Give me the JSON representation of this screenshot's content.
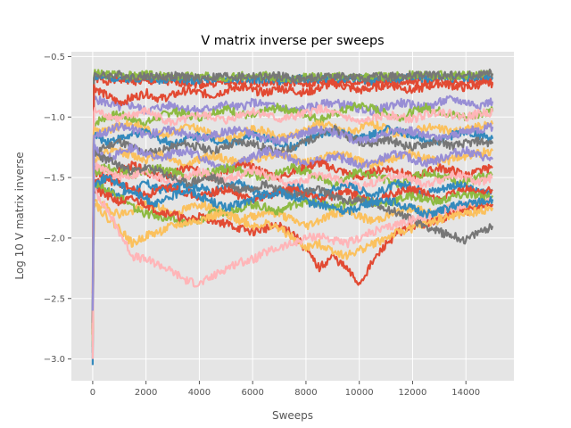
{
  "chart_data": {
    "type": "line",
    "title": "V matrix inverse per sweeps",
    "xlabel": "Sweeps",
    "ylabel": "Log 10 V matrix inverse",
    "xlim": [
      -800,
      15800
    ],
    "ylim": [
      -3.18,
      -0.46
    ],
    "xticks": [
      0,
      2000,
      4000,
      6000,
      8000,
      10000,
      12000,
      14000
    ],
    "yticks": [
      -3.0,
      -2.5,
      -2.0,
      -1.5,
      -1.0,
      -0.5
    ],
    "ytick_labels": [
      "−3.0",
      "−2.5",
      "−2.0",
      "−1.5",
      "−1.0",
      "−0.5"
    ],
    "grid": true,
    "style": "ggplot",
    "palette": [
      "#E24A33",
      "#348ABD",
      "#988ED5",
      "#777777",
      "#FBC15E",
      "#8EBA42",
      "#FFB5B8"
    ],
    "x_sample": [
      0,
      50,
      500,
      1000,
      1500,
      2000,
      2500,
      3000,
      3500,
      4000,
      4500,
      5000,
      5500,
      6000,
      6500,
      7000,
      7500,
      8000,
      8500,
      9000,
      9500,
      10000,
      10500,
      11000,
      11500,
      12000,
      12500,
      13000,
      13500,
      14000,
      14500,
      15000
    ],
    "series": [
      {
        "color": "#E24A33",
        "values": [
          -2.46,
          -0.68,
          -0.7,
          -0.69,
          -0.7,
          -0.71,
          -0.7,
          -0.72,
          -0.71,
          -0.73,
          -0.72,
          -0.71,
          -0.72,
          -0.71,
          -0.72,
          -0.71,
          -0.72,
          -0.73,
          -0.71,
          -0.72,
          -0.71,
          -0.72,
          -0.71,
          -0.72,
          -0.71,
          -0.7,
          -0.71,
          -0.7,
          -0.71,
          -0.7,
          -0.7,
          -0.71
        ]
      },
      {
        "color": "#348ABD",
        "values": [
          -3.05,
          -0.66,
          -0.68,
          -0.67,
          -0.68,
          -0.67,
          -0.69,
          -0.68,
          -0.7,
          -0.69,
          -0.68,
          -0.69,
          -0.68,
          -0.69,
          -0.68,
          -0.7,
          -0.69,
          -0.68,
          -0.69,
          -0.68,
          -0.69,
          -0.68,
          -0.7,
          -0.69,
          -0.68,
          -0.67,
          -0.68,
          -0.67,
          -0.68,
          -0.67,
          -0.66,
          -0.67
        ]
      },
      {
        "color": "#8EBA42",
        "values": [
          -2.9,
          -0.64,
          -0.65,
          -0.64,
          -0.66,
          -0.65,
          -0.66,
          -0.67,
          -0.66,
          -0.67,
          -0.66,
          -0.67,
          -0.66,
          -0.67,
          -0.66,
          -0.67,
          -0.68,
          -0.67,
          -0.66,
          -0.67,
          -0.66,
          -0.67,
          -0.66,
          -0.67,
          -0.66,
          -0.65,
          -0.66,
          -0.65,
          -0.66,
          -0.65,
          -0.65,
          -0.64
        ]
      },
      {
        "color": "#777777",
        "values": [
          -2.95,
          -0.65,
          -0.66,
          -0.65,
          -0.67,
          -0.66,
          -0.67,
          -0.66,
          -0.67,
          -0.68,
          -0.67,
          -0.66,
          -0.67,
          -0.66,
          -0.67,
          -0.66,
          -0.68,
          -0.69,
          -0.67,
          -0.66,
          -0.67,
          -0.68,
          -0.67,
          -0.66,
          -0.67,
          -0.66,
          -0.65,
          -0.66,
          -0.65,
          -0.66,
          -0.65,
          -0.64
        ]
      },
      {
        "color": "#988ED5",
        "values": [
          -2.8,
          -0.85,
          -0.88,
          -0.92,
          -0.9,
          -0.95,
          -0.92,
          -0.9,
          -0.93,
          -0.95,
          -0.92,
          -0.9,
          -0.92,
          -0.88,
          -0.9,
          -0.92,
          -0.95,
          -0.93,
          -0.9,
          -0.88,
          -0.9,
          -0.93,
          -0.95,
          -0.92,
          -0.88,
          -0.9,
          -0.92,
          -0.88,
          -0.85,
          -0.88,
          -0.9,
          -0.87
        ]
      },
      {
        "color": "#E24A33",
        "values": [
          -2.7,
          -0.75,
          -0.82,
          -0.88,
          -0.84,
          -0.8,
          -0.85,
          -0.82,
          -0.78,
          -0.8,
          -0.82,
          -0.78,
          -0.75,
          -0.78,
          -0.8,
          -0.76,
          -0.78,
          -0.8,
          -0.76,
          -0.72,
          -0.75,
          -0.78,
          -0.76,
          -0.73,
          -0.75,
          -0.78,
          -0.75,
          -0.72,
          -0.74,
          -0.76,
          -0.73,
          -0.72
        ]
      },
      {
        "color": "#8EBA42",
        "values": [
          -2.7,
          -1.05,
          -1.0,
          -0.98,
          -1.02,
          -1.05,
          -1.0,
          -0.95,
          -0.98,
          -1.0,
          -0.96,
          -0.93,
          -0.97,
          -1.0,
          -0.95,
          -0.92,
          -0.95,
          -0.98,
          -1.02,
          -0.98,
          -0.94,
          -0.9,
          -0.93,
          -0.97,
          -1.0,
          -0.96,
          -0.92,
          -0.95,
          -0.98,
          -1.0,
          -0.97,
          -0.95
        ]
      },
      {
        "color": "#FFB5B8",
        "values": [
          -2.6,
          -0.95,
          -0.98,
          -1.02,
          -0.98,
          -0.95,
          -1.0,
          -1.05,
          -1.02,
          -0.98,
          -1.0,
          -1.03,
          -0.98,
          -0.95,
          -0.98,
          -1.02,
          -1.0,
          -0.97,
          -0.93,
          -0.97,
          -1.0,
          -1.05,
          -1.02,
          -0.98,
          -1.0,
          -1.02,
          -0.98,
          -0.95,
          -0.98,
          -1.0,
          -0.97,
          -0.96
        ]
      },
      {
        "color": "#FBC15E",
        "values": [
          -2.55,
          -1.1,
          -1.12,
          -1.08,
          -1.05,
          -1.1,
          -1.15,
          -1.12,
          -1.08,
          -1.1,
          -1.15,
          -1.2,
          -1.15,
          -1.1,
          -1.12,
          -1.18,
          -1.15,
          -1.1,
          -1.05,
          -1.08,
          -1.12,
          -1.1,
          -1.06,
          -1.1,
          -1.15,
          -1.12,
          -1.08,
          -1.1,
          -1.12,
          -1.1,
          -1.08,
          -1.06
        ]
      },
      {
        "color": "#348ABD",
        "values": [
          -2.6,
          -1.15,
          -1.2,
          -1.18,
          -1.15,
          -1.12,
          -1.18,
          -1.22,
          -1.18,
          -1.15,
          -1.18,
          -1.22,
          -1.2,
          -1.15,
          -1.18,
          -1.22,
          -1.25,
          -1.2,
          -1.15,
          -1.12,
          -1.15,
          -1.18,
          -1.15,
          -1.1,
          -1.12,
          -1.15,
          -1.18,
          -1.2,
          -1.15,
          -1.12,
          -1.15,
          -1.18
        ]
      },
      {
        "color": "#777777",
        "values": [
          -2.6,
          -1.3,
          -1.25,
          -1.2,
          -1.25,
          -1.3,
          -1.28,
          -1.25,
          -1.22,
          -1.25,
          -1.28,
          -1.25,
          -1.2,
          -1.22,
          -1.26,
          -1.3,
          -1.25,
          -1.2,
          -1.15,
          -1.1,
          -1.15,
          -1.2,
          -1.22,
          -1.18,
          -1.22,
          -1.25,
          -1.22,
          -1.2,
          -1.24,
          -1.22,
          -1.2,
          -1.22
        ]
      },
      {
        "color": "#FBC15E",
        "values": [
          -2.65,
          -1.35,
          -1.3,
          -1.28,
          -1.32,
          -1.35,
          -1.3,
          -1.35,
          -1.4,
          -1.35,
          -1.32,
          -1.35,
          -1.38,
          -1.35,
          -1.32,
          -1.3,
          -1.34,
          -1.38,
          -1.35,
          -1.3,
          -1.32,
          -1.36,
          -1.4,
          -1.36,
          -1.32,
          -1.3,
          -1.34,
          -1.38,
          -1.35,
          -1.32,
          -1.3,
          -1.28
        ]
      },
      {
        "color": "#988ED5",
        "values": [
          -2.65,
          -1.25,
          -1.35,
          -1.3,
          -1.25,
          -1.3,
          -1.35,
          -1.3,
          -1.28,
          -1.32,
          -1.38,
          -1.42,
          -1.38,
          -1.33,
          -1.28,
          -1.3,
          -1.35,
          -1.4,
          -1.36,
          -1.32,
          -1.35,
          -1.4,
          -1.38,
          -1.33,
          -1.3,
          -1.35,
          -1.38,
          -1.35,
          -1.3,
          -1.28,
          -1.32,
          -1.35
        ]
      },
      {
        "color": "#E24A33",
        "values": [
          -2.7,
          -1.45,
          -1.5,
          -1.45,
          -1.4,
          -1.45,
          -1.5,
          -1.48,
          -1.42,
          -1.45,
          -1.5,
          -1.45,
          -1.4,
          -1.42,
          -1.46,
          -1.5,
          -1.45,
          -1.42,
          -1.38,
          -1.42,
          -1.46,
          -1.5,
          -1.46,
          -1.42,
          -1.45,
          -1.5,
          -1.46,
          -1.42,
          -1.44,
          -1.48,
          -1.45,
          -1.42
        ]
      },
      {
        "color": "#8EBA42",
        "values": [
          -2.7,
          -1.45,
          -1.42,
          -1.45,
          -1.48,
          -1.45,
          -1.42,
          -1.45,
          -1.5,
          -1.48,
          -1.45,
          -1.42,
          -1.44,
          -1.48,
          -1.5,
          -1.46,
          -1.42,
          -1.45,
          -1.5,
          -1.55,
          -1.5,
          -1.45,
          -1.48,
          -1.52,
          -1.55,
          -1.5,
          -1.46,
          -1.48,
          -1.52,
          -1.55,
          -1.5,
          -1.48
        ]
      },
      {
        "color": "#FFB5B8",
        "values": [
          -2.7,
          -1.4,
          -1.45,
          -1.5,
          -1.48,
          -1.45,
          -1.5,
          -1.55,
          -1.5,
          -1.45,
          -1.48,
          -1.52,
          -1.48,
          -1.44,
          -1.48,
          -1.52,
          -1.56,
          -1.52,
          -1.48,
          -1.5,
          -1.55,
          -1.58,
          -1.54,
          -1.5,
          -1.48,
          -1.52,
          -1.56,
          -1.52,
          -1.48,
          -1.5,
          -1.54,
          -1.5
        ]
      },
      {
        "color": "#348ABD",
        "values": [
          -2.75,
          -1.55,
          -1.6,
          -1.65,
          -1.6,
          -1.55,
          -1.6,
          -1.58,
          -1.55,
          -1.58,
          -1.62,
          -1.58,
          -1.55,
          -1.6,
          -1.65,
          -1.62,
          -1.58,
          -1.6,
          -1.65,
          -1.6,
          -1.56,
          -1.6,
          -1.64,
          -1.6,
          -1.55,
          -1.58,
          -1.62,
          -1.6,
          -1.56,
          -1.58,
          -1.62,
          -1.6
        ]
      },
      {
        "color": "#E24A33",
        "values": [
          -2.75,
          -1.55,
          -1.52,
          -1.55,
          -1.6,
          -1.65,
          -1.6,
          -1.58,
          -1.62,
          -1.66,
          -1.62,
          -1.6,
          -1.65,
          -1.68,
          -1.65,
          -1.62,
          -1.6,
          -1.64,
          -1.68,
          -1.65,
          -1.62,
          -1.66,
          -1.7,
          -1.66,
          -1.62,
          -1.6,
          -1.64,
          -1.68,
          -1.64,
          -1.6,
          -1.62,
          -1.6
        ]
      },
      {
        "color": "#FBC15E",
        "values": [
          -2.8,
          -1.7,
          -1.75,
          -1.8,
          -1.78,
          -1.72,
          -1.75,
          -1.8,
          -1.76,
          -1.72,
          -1.75,
          -1.8,
          -1.85,
          -1.82,
          -1.78,
          -1.8,
          -1.85,
          -1.9,
          -1.85,
          -1.8,
          -1.78,
          -1.82,
          -1.86,
          -1.82,
          -1.78,
          -1.75,
          -1.78,
          -1.82,
          -1.78,
          -1.75,
          -1.72,
          -1.7
        ]
      },
      {
        "color": "#8EBA42",
        "values": [
          -2.8,
          -1.55,
          -1.6,
          -1.65,
          -1.75,
          -1.8,
          -1.82,
          -1.85,
          -1.88,
          -1.85,
          -1.8,
          -1.78,
          -1.75,
          -1.72,
          -1.75,
          -1.78,
          -1.72,
          -1.7,
          -1.72,
          -1.75,
          -1.72,
          -1.68,
          -1.7,
          -1.72,
          -1.68,
          -1.65,
          -1.68,
          -1.7,
          -1.66,
          -1.64,
          -1.66,
          -1.65
        ]
      },
      {
        "color": "#E24A33",
        "values": [
          -2.8,
          -1.6,
          -1.65,
          -1.7,
          -1.68,
          -1.72,
          -1.78,
          -1.8,
          -1.85,
          -1.82,
          -1.85,
          -1.88,
          -1.92,
          -1.95,
          -1.92,
          -1.9,
          -1.95,
          -2.1,
          -2.25,
          -2.15,
          -2.25,
          -2.38,
          -2.2,
          -2.05,
          -1.95,
          -1.9,
          -1.88,
          -1.85,
          -1.8,
          -1.78,
          -1.75,
          -1.72
        ]
      },
      {
        "color": "#FBC15E",
        "values": [
          -2.85,
          -1.7,
          -1.82,
          -1.92,
          -2.05,
          -1.98,
          -1.95,
          -1.9,
          -1.88,
          -1.85,
          -1.82,
          -1.8,
          -1.85,
          -1.9,
          -1.88,
          -1.92,
          -2.0,
          -2.08,
          -2.05,
          -2.1,
          -2.15,
          -2.1,
          -2.05,
          -2.0,
          -1.95,
          -1.92,
          -1.88,
          -1.85,
          -1.82,
          -1.8,
          -1.78,
          -1.75
        ]
      },
      {
        "color": "#777777",
        "values": [
          -2.7,
          -1.3,
          -1.35,
          -1.4,
          -1.45,
          -1.42,
          -1.45,
          -1.5,
          -1.55,
          -1.52,
          -1.5,
          -1.55,
          -1.6,
          -1.58,
          -1.55,
          -1.6,
          -1.65,
          -1.62,
          -1.6,
          -1.65,
          -1.7,
          -1.68,
          -1.72,
          -1.75,
          -1.8,
          -1.85,
          -1.9,
          -1.95,
          -1.98,
          -2.02,
          -1.95,
          -1.9
        ]
      },
      {
        "color": "#FFB5B8",
        "values": [
          -3.0,
          -1.6,
          -1.75,
          -1.95,
          -2.15,
          -2.18,
          -2.22,
          -2.28,
          -2.35,
          -2.38,
          -2.32,
          -2.25,
          -2.2,
          -2.18,
          -2.12,
          -2.08,
          -2.05,
          -2.0,
          -1.98,
          -2.02,
          -2.05,
          -2.0,
          -1.95,
          -1.92,
          -1.88,
          -1.85,
          -1.82,
          -1.78,
          -1.75,
          -1.72,
          -1.7,
          -1.68
        ]
      },
      {
        "color": "#348ABD",
        "values": [
          -2.6,
          -1.55,
          -1.5,
          -1.55,
          -1.62,
          -1.68,
          -1.72,
          -1.65,
          -1.6,
          -1.65,
          -1.7,
          -1.75,
          -1.72,
          -1.68,
          -1.65,
          -1.62,
          -1.66,
          -1.7,
          -1.72,
          -1.75,
          -1.78,
          -1.74,
          -1.7,
          -1.68,
          -1.72,
          -1.76,
          -1.8,
          -1.78,
          -1.74,
          -1.72,
          -1.7,
          -1.68
        ]
      },
      {
        "color": "#988ED5",
        "values": [
          -2.6,
          -1.15,
          -1.12,
          -1.08,
          -1.1,
          -1.15,
          -1.12,
          -1.1,
          -1.14,
          -1.18,
          -1.15,
          -1.12,
          -1.1,
          -1.14,
          -1.18,
          -1.2,
          -1.16,
          -1.12,
          -1.1,
          -1.13,
          -1.16,
          -1.2,
          -1.18,
          -1.14,
          -1.1,
          -1.12,
          -1.15,
          -1.18,
          -1.15,
          -1.12,
          -1.1,
          -1.08
        ]
      }
    ]
  }
}
